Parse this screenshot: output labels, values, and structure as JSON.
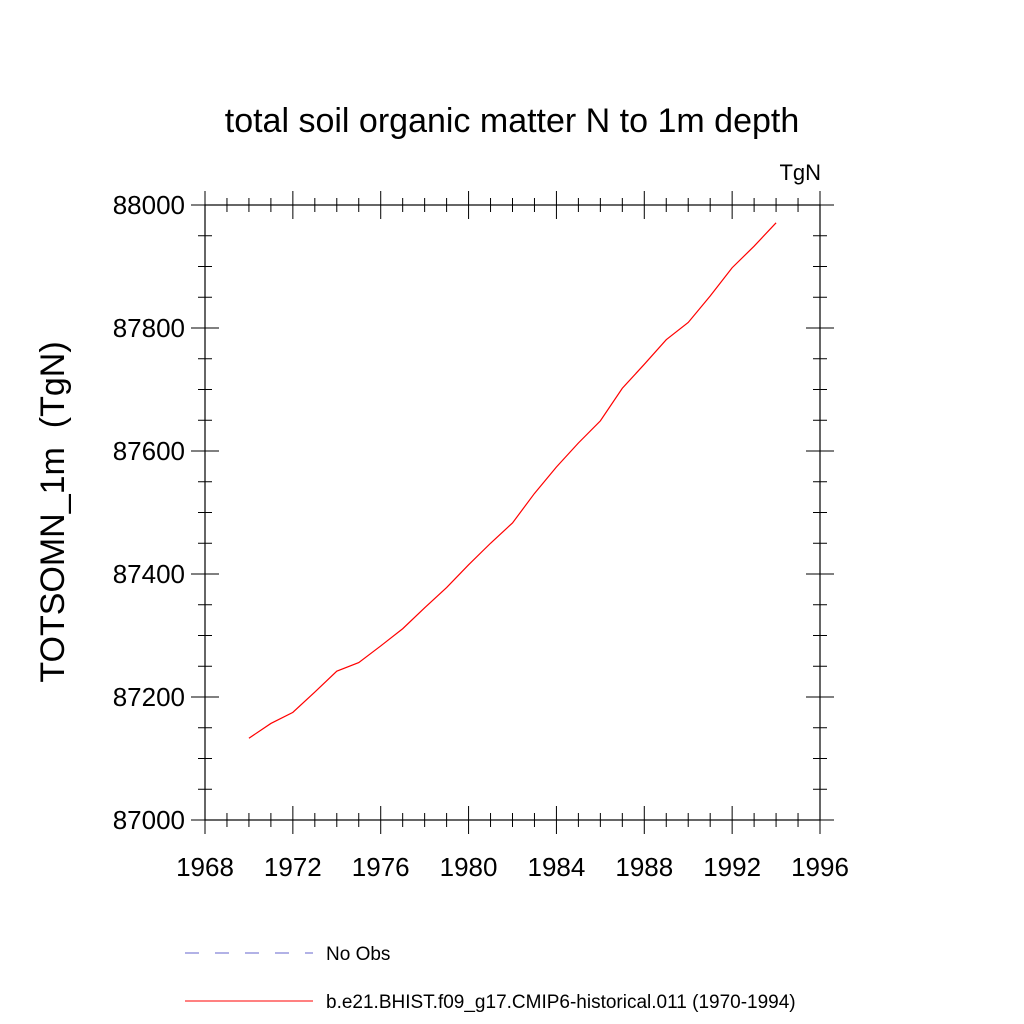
{
  "chart_data": {
    "type": "line",
    "title": "total soil organic matter N to 1m depth",
    "units_label": "TgN",
    "ylabel": "TOTSOMN_1m  (TgN)",
    "xlabel": "",
    "xlim": [
      1968,
      1996
    ],
    "ylim": [
      87000,
      88000
    ],
    "x_ticks": [
      "1968",
      "1972",
      "1976",
      "1980",
      "1984",
      "1988",
      "1992",
      "1996"
    ],
    "y_ticks": [
      "87000",
      "87200",
      "87400",
      "87600",
      "87800",
      "88000"
    ],
    "x_tick_values": [
      1968,
      1972,
      1976,
      1980,
      1984,
      1988,
      1992,
      1996
    ],
    "y_tick_values": [
      87000,
      87200,
      87400,
      87600,
      87800,
      88000
    ],
    "x_minor_step": 1,
    "y_minor_step": 50,
    "grid": false,
    "legend_placement": "bottom",
    "series": [
      {
        "name": "b.e21.BHIST.f09_g17.CMIP6-historical.011 (1970-1994)",
        "color": "#ff0000",
        "x": [
          1970,
          1971,
          1972,
          1973,
          1974,
          1975,
          1976,
          1977,
          1978,
          1979,
          1980,
          1981,
          1982,
          1983,
          1984,
          1985,
          1986,
          1987,
          1988,
          1989,
          1990,
          1991,
          1992,
          1993,
          1994
        ],
        "y": [
          87133,
          87157,
          87175,
          87208,
          87242,
          87256,
          87283,
          87311,
          87345,
          87378,
          87415,
          87450,
          87483,
          87531,
          87574,
          87613,
          87649,
          87702,
          87741,
          87781,
          87809,
          87852,
          87898,
          87933,
          87971
        ]
      }
    ],
    "legend": [
      {
        "label": "No Obs",
        "color": "#6666cc",
        "style": "dashed"
      },
      {
        "label": "b.e21.BHIST.f09_g17.CMIP6-historical.011 (1970-1994)",
        "color": "#ff0000",
        "style": "solid"
      }
    ]
  }
}
